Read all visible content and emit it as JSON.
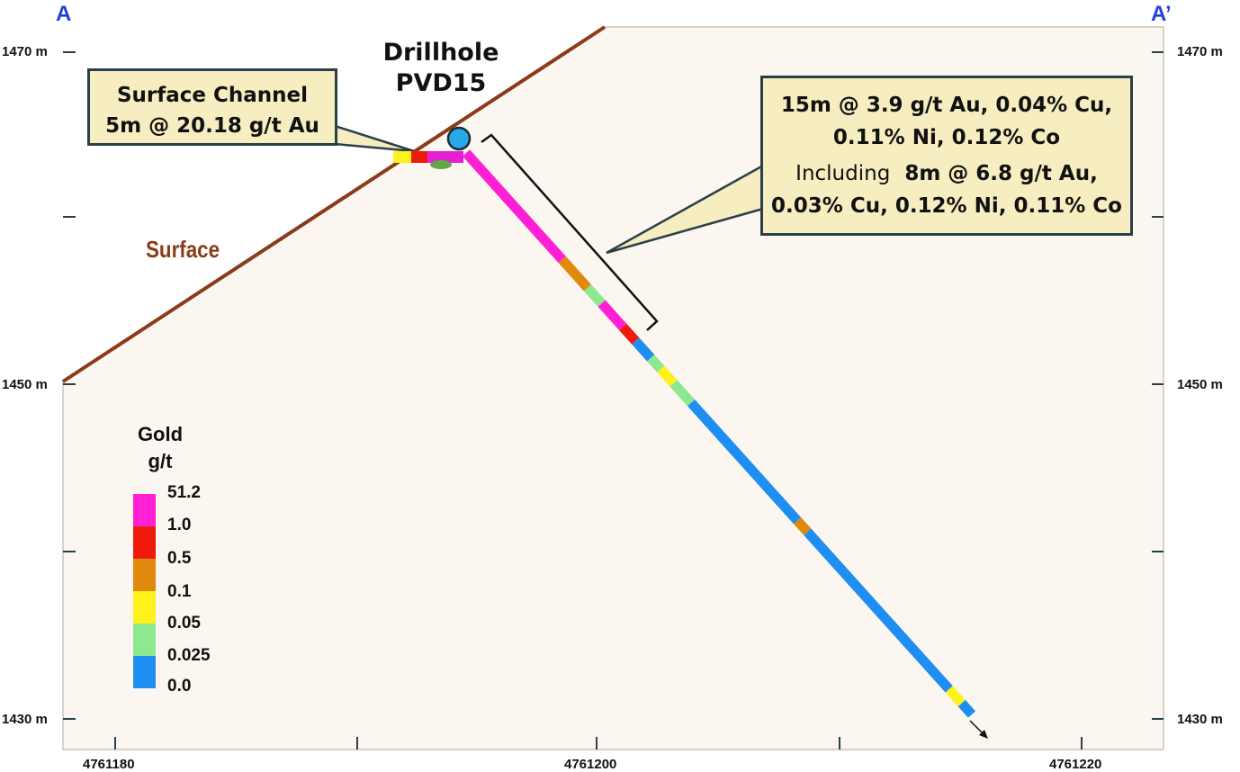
{
  "section": {
    "start_label": "A",
    "end_label": "A’"
  },
  "elevation_labels": {
    "top": "1470 m",
    "middle": "1450 m",
    "bottom": "1430 m"
  },
  "easting_labels": {
    "left": "4761180",
    "middle": "4761200",
    "right": "4761220"
  },
  "drillhole": {
    "title_line1": "Drillhole",
    "title_line2": "PVD15"
  },
  "surface_label": "Surface",
  "callouts": {
    "channel": {
      "line1": "Surface Channel",
      "line2": "5m @ 20.18 g/t Au"
    },
    "result": {
      "line1": "15m @ 3.9 g/t Au, 0.04% Cu,",
      "line2": "0.11% Ni, 0.12% Co",
      "including_prefix": "Including",
      "including_value": "8m @ 6.8 g/t Au,",
      "line4": "0.03% Cu, 0.12% Ni, 0.11% Co"
    }
  },
  "legend": {
    "title_line1": "Gold",
    "title_line2": "g/t",
    "values": [
      "51.2",
      "1.0",
      "0.5",
      "0.1",
      "0.05",
      "0.025",
      "0.0"
    ],
    "colors": [
      "#ff1fd5",
      "#ee1b0d",
      "#e0890d",
      "#fff21c",
      "#8de88f",
      "#1e8ef2"
    ]
  },
  "colors": {
    "background": "#fbf6ef",
    "surface_line": "#8a3b1a",
    "collar": "#29a8e8",
    "callout_fill": "#f6edc0",
    "callout_border": "#2a4049",
    "section_letter": "#1f3fe0"
  }
}
